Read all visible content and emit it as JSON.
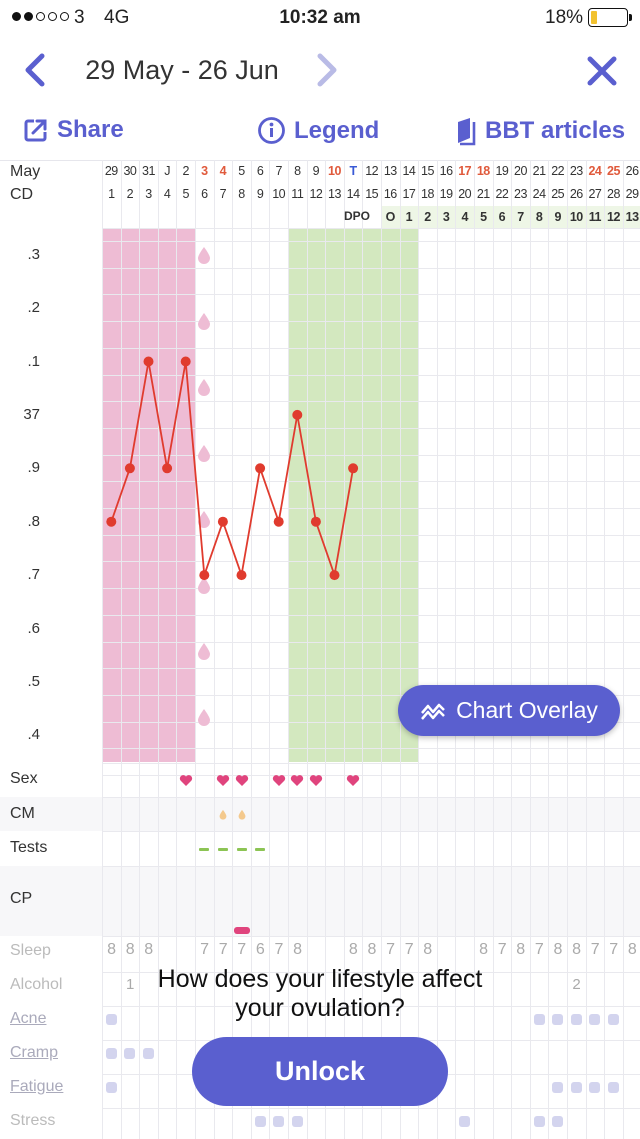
{
  "status_bar": {
    "carrier": "3",
    "network": "4G",
    "time": "10:32 am",
    "battery": "18%",
    "battery_level": 0.18,
    "signal_bars_on": 2,
    "signal_bars_total": 5
  },
  "header": {
    "date_range": "29 May - 26 Jun",
    "prev_icon": "chevron-left-icon",
    "next_icon": "chevron-right-icon",
    "close_icon": "close-icon"
  },
  "toolbar": {
    "share": "Share",
    "legend": "Legend",
    "articles": "BBT articles"
  },
  "colors": {
    "accent": "#5a5fcf",
    "period": "#eebcd4",
    "fertile": "#d3e8bf",
    "dpo_bg": "#eef6e6",
    "line": "#e03b2e",
    "heart": "#e0447d",
    "battery": "#f2c230",
    "red_date": "#e05a3c",
    "blue_date": "#3a5ad6"
  },
  "calendar": {
    "month_label": "May",
    "cd_label": "CD",
    "dpo_label": "DPO",
    "dates": [
      "29",
      "30",
      "31",
      "J",
      "2",
      "3",
      "4",
      "5",
      "6",
      "7",
      "8",
      "9",
      "10",
      "T",
      "12",
      "13",
      "14",
      "15",
      "16",
      "17",
      "18",
      "19",
      "20",
      "21",
      "22",
      "23",
      "24",
      "25",
      "26"
    ],
    "date_styles": [
      "",
      "",
      "",
      "",
      "",
      "red",
      "red",
      "",
      "",
      "",
      "",
      "",
      "red",
      "blue",
      "",
      "",
      "",
      "",
      "",
      "red",
      "red",
      "",
      "",
      "",
      "",
      "",
      "red",
      "red",
      ""
    ],
    "cycle_days": [
      "1",
      "2",
      "3",
      "4",
      "5",
      "6",
      "7",
      "8",
      "9",
      "10",
      "11",
      "12",
      "13",
      "14",
      "15",
      "16",
      "17",
      "18",
      "19",
      "20",
      "21",
      "22",
      "23",
      "24",
      "25",
      "26",
      "27",
      "28",
      "29"
    ],
    "dpo_values": [
      "O",
      "1",
      "2",
      "3",
      "4",
      "5",
      "6",
      "7",
      "8",
      "9",
      "10",
      "11",
      "12",
      "13"
    ],
    "dpo_start_index": 15
  },
  "chart_data": {
    "type": "line",
    "x": [
      1,
      2,
      3,
      4,
      5,
      6,
      7,
      8,
      9,
      10,
      11,
      12,
      13,
      14
    ],
    "x_unit": "cycle day",
    "values": [
      36.8,
      36.9,
      37.1,
      36.9,
      37.1,
      36.7,
      36.8,
      36.7,
      36.9,
      36.8,
      37.0,
      36.8,
      36.7,
      36.9
    ],
    "y_ticks": [
      ".3",
      ".2",
      ".1",
      "37",
      ".9",
      ".8",
      ".7",
      ".6",
      ".5",
      ".4"
    ],
    "y_tick_values": [
      37.3,
      37.2,
      37.1,
      37.0,
      36.9,
      36.8,
      36.7,
      36.6,
      36.5,
      36.4
    ],
    "ylim": [
      36.35,
      37.35
    ],
    "period_days": [
      1,
      5
    ],
    "spotting_days": [
      6,
      6
    ],
    "fertile_days": [
      11,
      17
    ]
  },
  "tracking": {
    "sex_label": "Sex",
    "cm_label": "CM",
    "tests_label": "Tests",
    "cp_label": "CP",
    "sex_days": [
      5,
      7,
      8,
      10,
      11,
      12,
      14
    ],
    "cm_days": [
      7,
      8
    ],
    "test_days": [
      6,
      7,
      8,
      9
    ],
    "cp_days": [
      8
    ]
  },
  "lifestyle": {
    "sleep_label": "Sleep",
    "alcohol_label": "Alcohol",
    "acne_label": "Acne",
    "cramp_label": "Cramp",
    "fatigue_label": "Fatigue",
    "stress_label": "Stress",
    "sleep_values": [
      "8",
      "8",
      "8",
      "",
      "",
      "7",
      "7",
      "7",
      "6",
      "7",
      "8",
      "",
      "",
      "8",
      "8",
      "7",
      "7",
      "8",
      "",
      "",
      "8",
      "7",
      "8",
      "7",
      "8",
      "8",
      "7",
      "7",
      "8"
    ],
    "alcohol_values": [
      "",
      "1",
      "",
      "",
      "",
      "",
      "",
      "",
      "",
      "",
      "",
      "",
      "",
      "",
      "",
      "",
      "",
      "",
      "",
      "",
      "",
      "",
      "",
      "",
      "",
      "2",
      "",
      "",
      ""
    ],
    "acne_days": [
      1,
      24,
      25,
      26,
      27,
      28
    ],
    "cramp_days": [
      1,
      2,
      3
    ],
    "fatigue_days": [
      1,
      25,
      26,
      27,
      28
    ],
    "stress_days": [
      9,
      10,
      11,
      20,
      24,
      25
    ]
  },
  "chart_overlay": {
    "label": "Chart Overlay",
    "icon": "chart-overlay-icon"
  },
  "promo": {
    "line1": "How does your lifestyle affect",
    "line2": "your ovulation?",
    "unlock": "Unlock"
  }
}
